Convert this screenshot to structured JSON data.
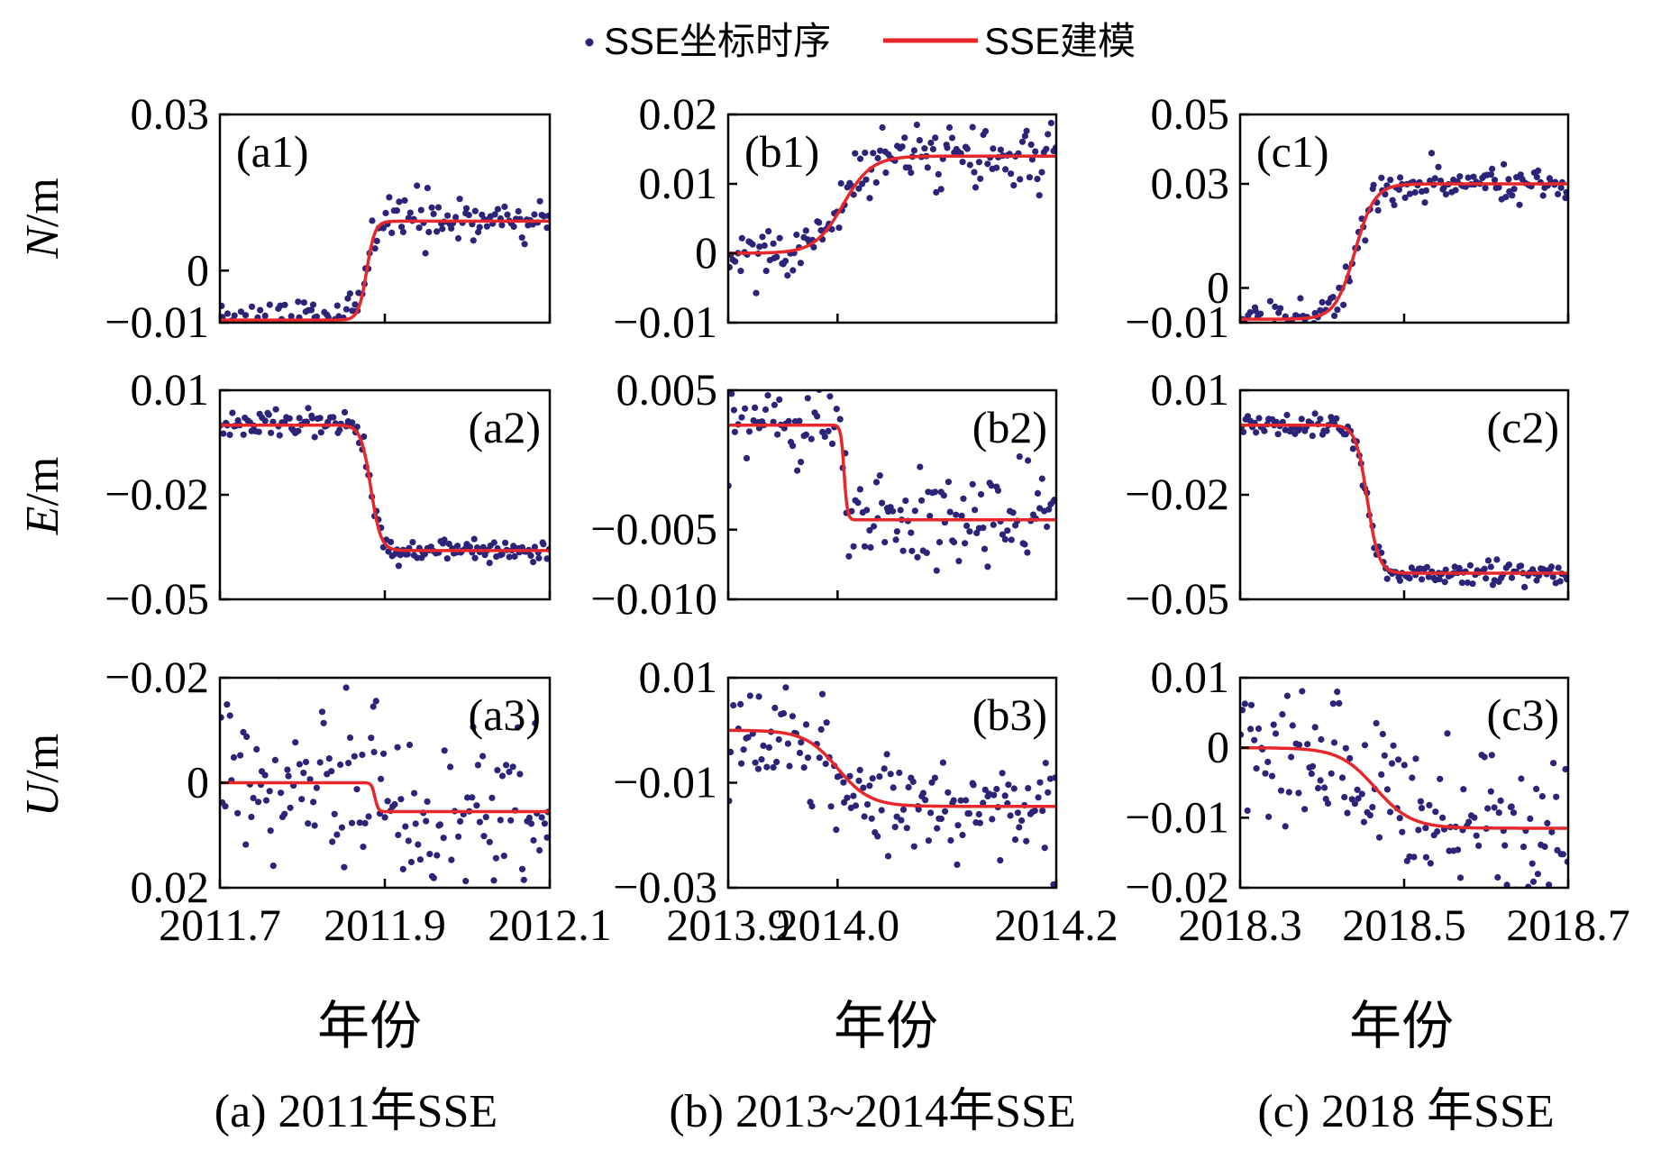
{
  "legend": {
    "scatter_label": "SSE坐标时序",
    "line_label": "SSE建模",
    "scatter_color": "#2b2478",
    "line_color": "#e8272a"
  },
  "row_labels": [
    "N/m",
    "E/m",
    "U/m"
  ],
  "row_label_parts": [
    {
      "italic": "N",
      "rest": "/m"
    },
    {
      "italic": "E",
      "rest": "/m"
    },
    {
      "italic": "U",
      "rest": "/m"
    }
  ],
  "columns": [
    {
      "xlabel": "年份",
      "caption": "(a) 2011年SSE",
      "xticks": [
        "2011.7",
        "2011.9",
        "2012.1"
      ]
    },
    {
      "xlabel": "年份",
      "caption": "(b) 2013~2014年SSE",
      "xticks": [
        "2013.9",
        "2014.0",
        "2014.2"
      ]
    },
    {
      "xlabel": "年份",
      "caption": "(c) 2018 年SSE",
      "xticks": [
        "2018.3",
        "2018.5",
        "2018.7"
      ]
    }
  ],
  "chart_data": [
    {
      "type": "scatter",
      "panel": "(a1)",
      "label_pos": "top-left",
      "xlim": [
        2011.7,
        2012.1
      ],
      "ylim": [
        -0.01,
        0.03
      ],
      "yticks": [
        "0.03",
        "0",
        "−0.01"
      ],
      "ytick_values": [
        0.03,
        0,
        -0.01
      ],
      "xticks": [
        2011.7,
        2011.9,
        2012.1
      ],
      "model": {
        "kind": "sigmoid",
        "before": -0.0095,
        "after": 0.0095,
        "t0": 2011.878,
        "width": 0.005
      },
      "noise": 0.0022,
      "seed": 11
    },
    {
      "type": "scatter",
      "panel": "(b1)",
      "label_pos": "top-left",
      "xlim": [
        2013.9,
        2014.2
      ],
      "ylim": [
        -0.01,
        0.02
      ],
      "yticks": [
        "0.02",
        "0.01",
        "0",
        "−0.01"
      ],
      "ytick_values": [
        0.02,
        0.01,
        0,
        -0.01
      ],
      "xticks": [
        2013.9,
        2014.0,
        2014.2
      ],
      "model": {
        "kind": "sigmoid",
        "before": 0.0,
        "after": 0.014,
        "t0": 2014.005,
        "width": 0.013
      },
      "noise": 0.0022,
      "seed": 12
    },
    {
      "type": "scatter",
      "panel": "(c1)",
      "label_pos": "top-left",
      "xlim": [
        2018.3,
        2018.7
      ],
      "ylim": [
        -0.01,
        0.05
      ],
      "yticks": [
        "0.05",
        "0.03",
        "0",
        "−0.01"
      ],
      "ytick_values": [
        0.05,
        0.03,
        0,
        -0.01
      ],
      "xticks": [
        2018.3,
        2018.5,
        2018.7
      ],
      "model": {
        "kind": "sigmoid",
        "before": -0.009,
        "after": 0.03,
        "t0": 2018.44,
        "width": 0.012
      },
      "noise": 0.0025,
      "seed": 13
    },
    {
      "type": "scatter",
      "panel": "(a2)",
      "label_pos": "top-right",
      "xlim": [
        2011.7,
        2012.1
      ],
      "ylim": [
        -0.05,
        0.01
      ],
      "yticks": [
        "0.01",
        "−0.02",
        "−0.05"
      ],
      "ytick_values": [
        0.01,
        -0.02,
        -0.05
      ],
      "xticks": [
        2011.7,
        2011.9,
        2012.1
      ],
      "model": {
        "kind": "sigmoid",
        "before": 0.0,
        "after": -0.036,
        "t0": 2011.883,
        "width": 0.006
      },
      "noise": 0.0018,
      "seed": 21
    },
    {
      "type": "scatter",
      "panel": "(b2)",
      "label_pos": "top-right",
      "xlim": [
        2013.9,
        2014.2
      ],
      "ylim": [
        -0.01,
        0.005
      ],
      "yticks": [
        "0.005",
        "−0.005",
        "−0.010"
      ],
      "ytick_values": [
        0.005,
        -0.005,
        -0.01
      ],
      "xticks": [
        2013.9,
        2014.0,
        2014.2
      ],
      "model": {
        "kind": "sigmoid",
        "before": 0.0025,
        "after": -0.0043,
        "t0": 2014.006,
        "width": 0.0015
      },
      "noise": 0.0018,
      "seed": 22
    },
    {
      "type": "scatter",
      "panel": "(c2)",
      "label_pos": "top-right",
      "xlim": [
        2018.3,
        2018.7
      ],
      "ylim": [
        -0.05,
        0.01
      ],
      "yticks": [
        "0.01",
        "−0.02",
        "−0.05"
      ],
      "ytick_values": [
        0.01,
        -0.02,
        -0.05
      ],
      "xticks": [
        2018.3,
        2018.5,
        2018.7
      ],
      "model": {
        "kind": "sigmoid",
        "before": 0.0,
        "after": -0.0425,
        "t0": 2018.455,
        "width": 0.007
      },
      "noise": 0.0018,
      "seed": 23
    },
    {
      "type": "scatter",
      "panel": "(a3)",
      "label_pos": "top-right",
      "xlim": [
        2011.7,
        2012.1
      ],
      "ylim": [
        -0.02,
        0.02
      ],
      "yticks": [
        "−0.02",
        "0",
        "0.02"
      ],
      "ytick_values": [
        -0.02,
        0,
        0.02
      ],
      "inverted": true,
      "xticks": [
        2011.7,
        2011.9,
        2012.1
      ],
      "model": {
        "kind": "sigmoid",
        "before": 0.0,
        "after": 0.0055,
        "t0": 2011.888,
        "width": 0.002
      },
      "noise": 0.0085,
      "seed": 31
    },
    {
      "type": "scatter",
      "panel": "(b3)",
      "label_pos": "top-right",
      "xlim": [
        2013.9,
        2014.2
      ],
      "ylim": [
        -0.03,
        0.01
      ],
      "yticks": [
        "0.01",
        "−0.01",
        "−0.03"
      ],
      "ytick_values": [
        0.01,
        -0.01,
        -0.03
      ],
      "xticks": [
        2013.9,
        2014.0,
        2014.2
      ],
      "model": {
        "kind": "sigmoid",
        "before": 0.0,
        "after": -0.0145,
        "t0": 2014.0,
        "width": 0.015
      },
      "noise": 0.0055,
      "seed": 32
    },
    {
      "type": "scatter",
      "panel": "(c3)",
      "label_pos": "top-right",
      "xlim": [
        2018.3,
        2018.7
      ],
      "ylim": [
        -0.02,
        0.01
      ],
      "yticks": [
        "0.01",
        "0",
        "−0.01",
        "−0.02"
      ],
      "ytick_values": [
        0.01,
        0,
        -0.01,
        -0.02
      ],
      "xticks": [
        2018.3,
        2018.5,
        2018.7
      ],
      "model": {
        "kind": "sigmoid",
        "before": 0.0,
        "after": -0.0115,
        "t0": 2018.465,
        "width": 0.022
      },
      "noise": 0.0055,
      "seed": 33
    }
  ]
}
